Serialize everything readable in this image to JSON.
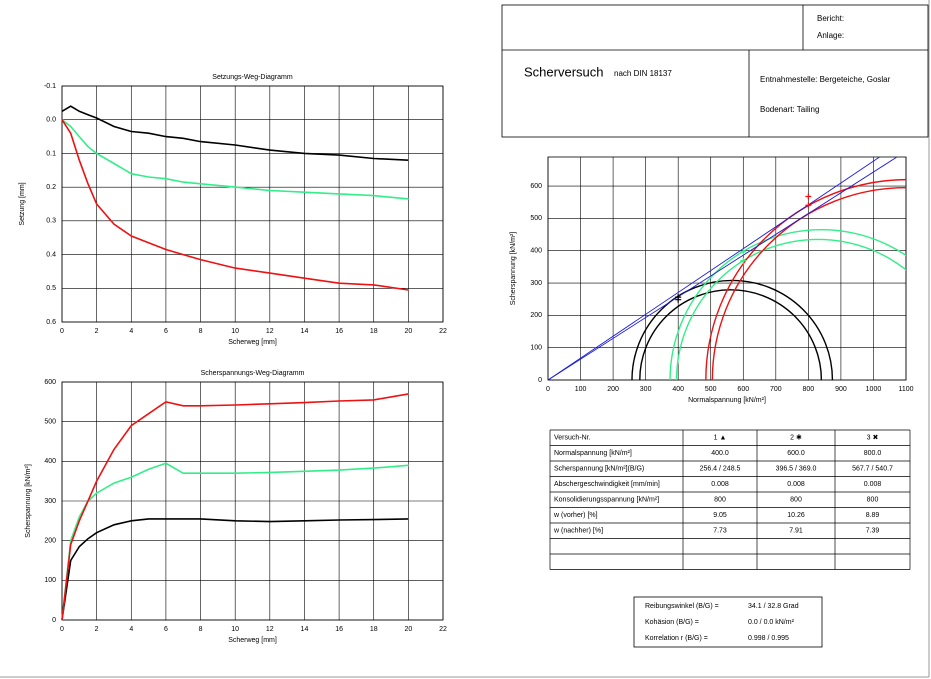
{
  "header": {
    "report": "Bericht:",
    "attachment": "Anlage:",
    "title": "Scherversuch",
    "norm": "nach DIN 18137",
    "location": "Entnahmestelle:  Bergeteiche, Goslar",
    "soil": "Bodenart:  Tailing"
  },
  "chart_data": [
    {
      "type": "line",
      "title": "Setzungs-Weg-Diagramm",
      "x_label": "Scherweg [mm]",
      "y_label": "Setzung [mm]",
      "x": [
        0,
        0.5,
        1,
        1.5,
        2,
        3,
        4,
        5,
        6,
        7,
        8,
        10,
        12,
        14,
        16,
        18,
        20
      ],
      "series": [
        {
          "color": "#000000",
          "values": [
            -0.025,
            -0.04,
            -0.025,
            -0.015,
            -0.005,
            0.02,
            0.035,
            0.04,
            0.05,
            0.055,
            0.065,
            0.075,
            0.09,
            0.1,
            0.105,
            0.115,
            0.12
          ]
        },
        {
          "color": "#33ee88",
          "values": [
            0,
            0.02,
            0.05,
            0.08,
            0.1,
            0.13,
            0.16,
            0.17,
            0.175,
            0.185,
            0.19,
            0.2,
            0.21,
            0.215,
            0.22,
            0.225,
            0.235
          ]
        },
        {
          "color": "#ee1111",
          "values": [
            0,
            0.04,
            0.12,
            0.19,
            0.25,
            0.31,
            0.345,
            0.365,
            0.385,
            0.4,
            0.415,
            0.44,
            0.455,
            0.47,
            0.485,
            0.49,
            0.505
          ]
        }
      ],
      "xlim": [
        0,
        22
      ],
      "xticks": [
        0,
        2,
        4,
        6,
        8,
        10,
        12,
        14,
        16,
        18,
        20,
        22
      ],
      "ylim": [
        -0.1,
        0.6
      ],
      "y_inverted": true,
      "yticks": [
        -0.1,
        {
          "value": 0,
          "label": "0.0"
        },
        0.1,
        0.2,
        0.3,
        0.4,
        0.5,
        0.6
      ],
      "grid": true
    },
    {
      "type": "line",
      "title": "Scherspannungs-Weg-Diagramm",
      "x_label": "Scherweg [mm]",
      "y_label": "Scherspannung [kN/m²]",
      "x": [
        0,
        0.5,
        1,
        1.5,
        2,
        3,
        4,
        5,
        6,
        7,
        8,
        10,
        12,
        14,
        16,
        18,
        20
      ],
      "series": [
        {
          "color": "#000000",
          "values": [
            0,
            150,
            185,
            205,
            220,
            240,
            250,
            255,
            255,
            255,
            255,
            250,
            248,
            250,
            252,
            253,
            255
          ]
        },
        {
          "color": "#33ee88",
          "values": [
            0,
            200,
            260,
            300,
            320,
            345,
            360,
            380,
            395,
            370,
            370,
            370,
            372,
            375,
            378,
            383,
            390
          ]
        },
        {
          "color": "#ee1111",
          "values": [
            0,
            190,
            250,
            300,
            350,
            430,
            490,
            520,
            550,
            540,
            540,
            542,
            545,
            548,
            552,
            555,
            570
          ]
        }
      ],
      "xlim": [
        0,
        22
      ],
      "xticks": [
        0,
        2,
        4,
        6,
        8,
        10,
        12,
        14,
        16,
        18,
        20,
        22
      ],
      "ylim": [
        0,
        600
      ],
      "yticks": [
        0,
        100,
        200,
        300,
        400,
        500,
        600
      ],
      "grid": true
    },
    {
      "type": "mohr",
      "x_label": "Normalspannung [kN/m²]",
      "y_label": "Scherspannung [kN/m²]",
      "circles": [
        {
          "color": "#000000",
          "x": [
            258,
            874
          ]
        },
        {
          "color": "#000000",
          "x": [
            282,
            840
          ]
        },
        {
          "color": "#33ee88",
          "x": [
            375,
            1305
          ]
        },
        {
          "color": "#33ee88",
          "x": [
            395,
            1265
          ]
        },
        {
          "color": "#ee1111",
          "x": [
            485,
            1725
          ]
        },
        {
          "color": "#ee1111",
          "x": [
            505,
            1695
          ]
        }
      ],
      "envelopes": [
        {
          "color": "#1c1cd6",
          "x": [
            0,
            1100
          ],
          "values": [
            0,
            745
          ]
        },
        {
          "color": "#1c1cd6",
          "x": [
            0,
            1100
          ],
          "values": [
            0,
            708
          ]
        }
      ],
      "points": {
        "x": [
          400,
          600,
          800,
          400,
          600,
          800
        ],
        "values": [
          256.4,
          396.5,
          567.7,
          248.5,
          369.0,
          540.7
        ],
        "colors": [
          "#000000",
          "#33ee88",
          "#ee1111",
          "#000000",
          "#33ee88",
          "#ee1111"
        ]
      },
      "xlim": [
        0,
        1100
      ],
      "xticks": [
        0,
        100,
        200,
        300,
        400,
        500,
        600,
        700,
        800,
        900,
        1000,
        1100
      ],
      "ylim": [
        0,
        690
      ],
      "yticks": [
        0,
        100,
        200,
        300,
        400,
        500,
        600
      ],
      "grid": true
    }
  ],
  "table": {
    "header": [
      "Versuch-Nr.",
      "1 ▲",
      "2 ✱",
      "3 ✖"
    ],
    "header_colors": [
      "#000000",
      "#000000",
      "#33ee88",
      "#ee1111"
    ],
    "rows": [
      [
        "Normalspannung [kN/m²]",
        "400.0",
        "600.0",
        "800.0"
      ],
      [
        "Scherspannung [kN/m²](B/G)",
        "256.4 / 248.5",
        "396.5 / 369.0",
        "567.7 / 540.7"
      ],
      [
        "Abschergeschwindigkeit [mm/min]",
        "0.008",
        "0.008",
        "0.008"
      ],
      [
        "Konsolidierungsspannung [kN/m²]",
        "800",
        "800",
        "800"
      ],
      [
        "w (vorher) [%]",
        "9.05",
        "10.26",
        "8.89"
      ],
      [
        "w (nachher) [%]",
        "7.73",
        "7.91",
        "7.39"
      ]
    ]
  },
  "summary": {
    "rows": [
      [
        "Reibungswinkel (B/G) =",
        "34.1 / 32.8 Grad"
      ],
      [
        "Kohäsion (B/G) =",
        "0.0 /  0.0 kN/m²"
      ],
      [
        "Korrelation r (B/G) =",
        "0.998 / 0.995"
      ]
    ]
  }
}
